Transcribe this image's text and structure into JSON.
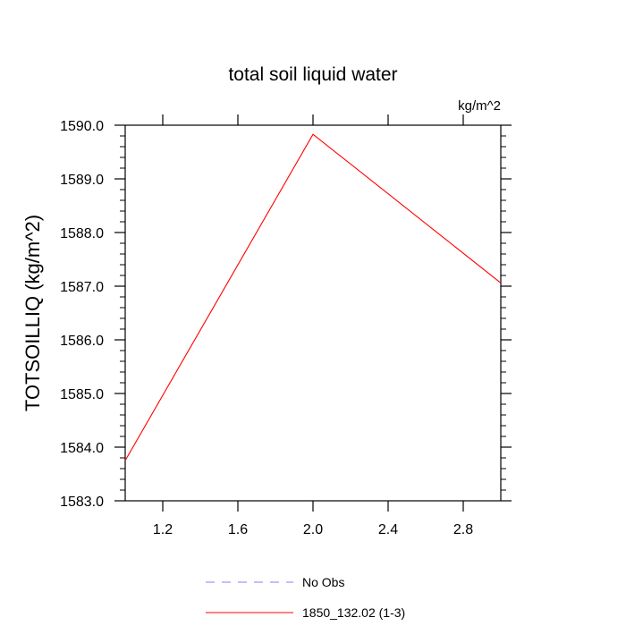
{
  "chart_data": {
    "type": "line",
    "title": "total soil liquid water",
    "units_label": "kg/m^2",
    "ylabel": "TOTSOILLIQ  (kg/m^2)",
    "xlabel": "",
    "xlim": [
      1.0,
      3.0
    ],
    "ylim": [
      1583.0,
      1590.0
    ],
    "x_ticks": [
      "1.2",
      "1.6",
      "2.0",
      "2.4",
      "2.8"
    ],
    "y_ticks": [
      "1583.0",
      "1584.0",
      "1585.0",
      "1586.0",
      "1587.0",
      "1588.0",
      "1589.0",
      "1590.0"
    ],
    "series": [
      {
        "name": "1850_132.02 (1-3)",
        "color": "#ff0000",
        "dash": "solid",
        "x": [
          1.0,
          2.0,
          3.0
        ],
        "y": [
          1583.75,
          1589.83,
          1587.06
        ]
      }
    ],
    "legend": [
      {
        "label": "No Obs",
        "color": "#8080ff",
        "dash": "dashed"
      },
      {
        "label": "1850_132.02 (1-3)",
        "color": "#ff0000",
        "dash": "solid"
      }
    ],
    "legend_position": "bottom",
    "grid": false
  }
}
